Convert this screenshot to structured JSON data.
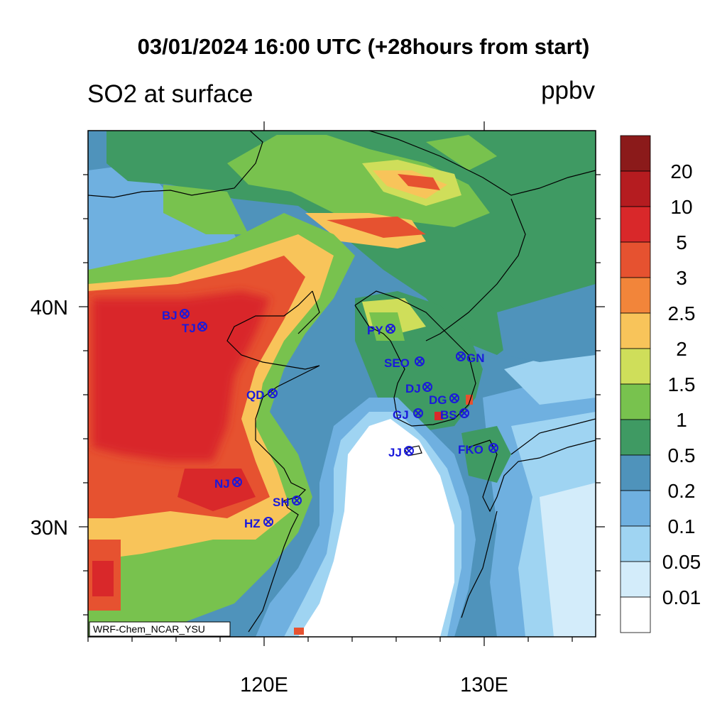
{
  "title": "03/01/2024 16:00 UTC (+28hours from start)",
  "variable": "SO2 at surface",
  "units": "ppbv",
  "credit": "WRF-Chem_NCAR_YSU",
  "axes": {
    "x_ticks": [
      "120E",
      "130E"
    ],
    "y_ticks": [
      "40N",
      "30N"
    ]
  },
  "colorbar": {
    "levels": [
      "20",
      "10",
      "5",
      "3",
      "2.5",
      "2",
      "1.5",
      "1",
      "0.5",
      "0.2",
      "0.1",
      "0.05",
      "0.01"
    ],
    "colors": [
      "#8b1a1a",
      "#b51c20",
      "#d9282a",
      "#e65230",
      "#f2853a",
      "#f8c45a",
      "#cfde5a",
      "#78c24e",
      "#3f9a63",
      "#4f93bb",
      "#6fb0e0",
      "#9fd4f2",
      "#d3ecfa",
      "#ffffff"
    ]
  },
  "stations": [
    {
      "code": "BJ"
    },
    {
      "code": "TJ"
    },
    {
      "code": "QD"
    },
    {
      "code": "NJ"
    },
    {
      "code": "SH"
    },
    {
      "code": "HZ"
    },
    {
      "code": "PY"
    },
    {
      "code": "SEO"
    },
    {
      "code": "GN"
    },
    {
      "code": "DJ"
    },
    {
      "code": "DG"
    },
    {
      "code": "GJ"
    },
    {
      "code": "BS"
    },
    {
      "code": "JJ"
    },
    {
      "code": "FKO"
    }
  ],
  "chart_data": {
    "type": "heatmap",
    "title": "03/01/2024 16:00 UTC (+28hours from start)",
    "field": "SO2 at surface",
    "units": "ppbv",
    "lon_range_deg": [
      112,
      135
    ],
    "lat_range_deg": [
      25,
      48
    ],
    "contour_levels": [
      0.01,
      0.05,
      0.1,
      0.2,
      0.5,
      1,
      1.5,
      2,
      2.5,
      3,
      5,
      10,
      20
    ]
  }
}
